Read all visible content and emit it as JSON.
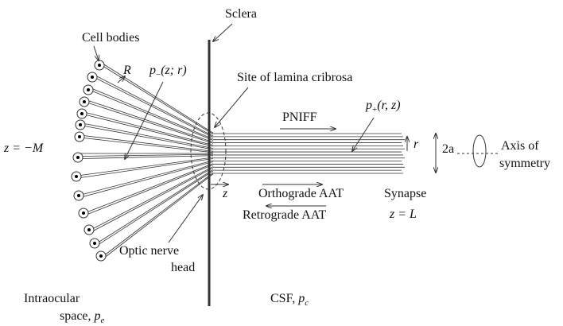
{
  "sclera": "Sclera",
  "cell_bodies": "Cell bodies",
  "radius": "R",
  "p_minus": {
    "var": "p",
    "sub": "−",
    "args": "(z; r)"
  },
  "lamina": "Site of lamina cribrosa",
  "pniff": "PNIFF",
  "p_plus": {
    "var": "p",
    "sub": "+",
    "args": "(r, z)"
  },
  "r": "r",
  "two_a": "2a",
  "axis": [
    "Axis of",
    "symmetry"
  ],
  "z_minus_m": "z = −M",
  "z": "z",
  "orthograde": "Orthograde AAT",
  "retrograde": "Retrograde AAT",
  "synapse": [
    "Synapse",
    "z = L"
  ],
  "optic": [
    "Optic nerve",
    "head"
  ],
  "intraocular": {
    "lines": [
      "Intraocular",
      "space, "
    ],
    "var": "p",
    "sub": "e"
  },
  "csf": {
    "text": "CSF, ",
    "var": "p",
    "sub": "c"
  }
}
